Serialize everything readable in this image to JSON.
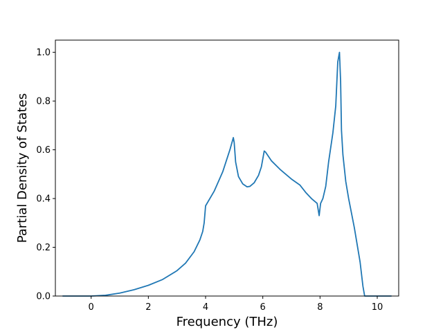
{
  "chart_data": {
    "type": "line",
    "title": "",
    "xlabel": "Frequency (THz)",
    "ylabel": "Partial Density of States",
    "xlim": [
      -1.25,
      10.75
    ],
    "ylim": [
      0.0,
      1.05
    ],
    "xticks": [
      0,
      2,
      4,
      6,
      8,
      10
    ],
    "yticks": [
      0.0,
      0.2,
      0.4,
      0.6,
      0.8,
      1.0
    ],
    "xtick_labels": [
      "0",
      "2",
      "4",
      "6",
      "8",
      "10"
    ],
    "ytick_labels": [
      "0.0",
      "0.2",
      "0.4",
      "0.6",
      "0.8",
      "1.0"
    ],
    "grid": false,
    "series": [
      {
        "color": "#1f77b4",
        "x": [
          -1.0,
          0.0,
          0.5,
          1.0,
          1.5,
          2.0,
          2.5,
          3.0,
          3.3,
          3.6,
          3.8,
          3.9,
          3.95,
          4.0,
          4.3,
          4.6,
          4.85,
          4.97,
          5.0,
          5.05,
          5.15,
          5.3,
          5.45,
          5.55,
          5.7,
          5.85,
          5.95,
          6.05,
          6.1,
          6.3,
          6.6,
          7.0,
          7.3,
          7.5,
          7.7,
          7.9,
          7.97,
          8.02,
          8.1,
          8.2,
          8.3,
          8.45,
          8.55,
          8.62,
          8.68,
          8.72,
          8.75,
          8.8,
          8.9,
          9.0,
          9.2,
          9.4,
          9.5,
          9.56,
          9.6,
          10.0,
          10.5
        ],
        "y": [
          0.0,
          0.0,
          0.003,
          0.012,
          0.026,
          0.044,
          0.068,
          0.104,
          0.135,
          0.182,
          0.23,
          0.265,
          0.3,
          0.37,
          0.43,
          0.51,
          0.6,
          0.65,
          0.63,
          0.55,
          0.49,
          0.46,
          0.448,
          0.45,
          0.465,
          0.495,
          0.53,
          0.595,
          0.59,
          0.555,
          0.52,
          0.48,
          0.455,
          0.425,
          0.4,
          0.38,
          0.33,
          0.38,
          0.4,
          0.45,
          0.55,
          0.67,
          0.78,
          0.96,
          1.0,
          0.88,
          0.68,
          0.58,
          0.47,
          0.4,
          0.28,
          0.14,
          0.04,
          0.0,
          0.0,
          0.0,
          0.0
        ]
      }
    ]
  }
}
